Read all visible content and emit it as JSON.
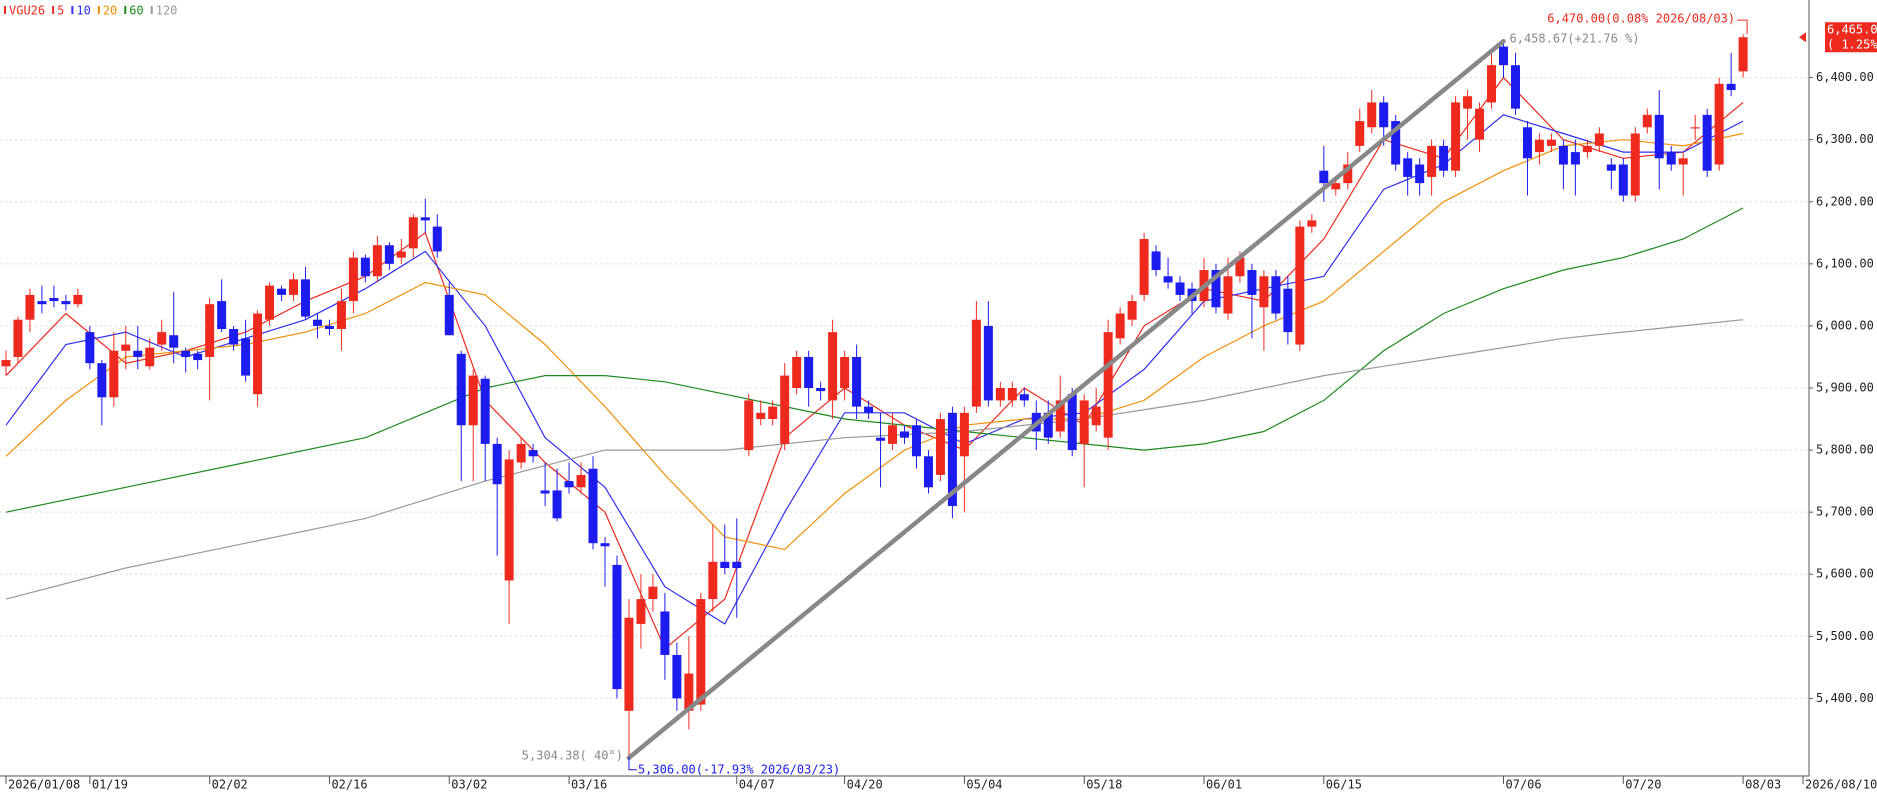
{
  "chart_data": {
    "type": "candlestick",
    "series": [
      {
        "name": "VGU26",
        "up_color": "#ee2a1e",
        "down_color": "#1c1cee",
        "open": [
          5935,
          5950,
          6010,
          6040,
          6045,
          6040,
          6035,
          5990,
          5940,
          5885,
          5960,
          5960,
          5935,
          5970,
          5985,
          5960,
          5955,
          5950,
          6040,
          5995,
          5980,
          5890,
          6010,
          6060,
          6050,
          6075,
          6010,
          6000,
          5995,
          6040,
          6110,
          6080,
          6130,
          6110,
          6125,
          6175,
          6160,
          6050,
          5955,
          5840,
          5915,
          5810,
          5590,
          5780,
          5800,
          5735,
          5735,
          5750,
          5740,
          5770,
          5650,
          5615,
          5380,
          5520,
          5560,
          5540,
          5470,
          5380,
          5390,
          5560,
          5620,
          5620,
          5800,
          5850,
          5850,
          5810,
          5900,
          5950,
          5900,
          5880,
          5900,
          5950,
          5870,
          5820,
          5810,
          5830,
          5840,
          5790,
          5760,
          5860,
          5790,
          5870,
          6000,
          5880,
          5880,
          5890,
          5860,
          5860,
          5830,
          5890,
          5810,
          5840,
          5820,
          5980,
          6010,
          6050,
          6120,
          6080,
          6070,
          6060,
          6040,
          6090,
          6020,
          6080,
          6090,
          6030,
          6080,
          6060,
          5970,
          6160,
          6250,
          6220,
          6230,
          6290,
          6320,
          6360,
          6330,
          6270,
          6260,
          6240,
          6290,
          6250,
          6350,
          6300,
          6360,
          6450,
          6420,
          6320,
          6280,
          6290,
          6290,
          6280,
          6280,
          6290,
          6260,
          6260,
          6210,
          6320,
          6340,
          6280,
          6260,
          6320,
          6340,
          6260,
          6390,
          6410
        ],
        "high": [
          5960,
          6015,
          6060,
          6065,
          6065,
          6050,
          6060,
          6000,
          5945,
          5990,
          6000,
          6000,
          5980,
          6010,
          6055,
          5965,
          5960,
          6045,
          6075,
          6000,
          6010,
          6025,
          6070,
          6065,
          6085,
          6095,
          6020,
          6010,
          6060,
          6120,
          6115,
          6145,
          6135,
          6140,
          6180,
          6205,
          6180,
          6070,
          5960,
          5930,
          5920,
          5820,
          5800,
          5820,
          5810,
          5780,
          5770,
          5780,
          5780,
          5790,
          5660,
          5630,
          5560,
          5600,
          5600,
          5570,
          5490,
          5500,
          5570,
          5680,
          5680,
          5690,
          5890,
          5880,
          5880,
          5940,
          5960,
          5960,
          5910,
          6010,
          5960,
          5970,
          5880,
          5860,
          5860,
          5840,
          5850,
          5800,
          5860,
          5870,
          5870,
          6040,
          6040,
          5910,
          5910,
          5900,
          5880,
          5880,
          5920,
          5900,
          5890,
          5900,
          6010,
          6030,
          6050,
          6150,
          6130,
          6110,
          6080,
          6070,
          6110,
          6100,
          6110,
          6120,
          6100,
          6090,
          6090,
          6080,
          6170,
          6180,
          6290,
          6240,
          6280,
          6350,
          6380,
          6370,
          6340,
          6280,
          6270,
          6300,
          6300,
          6370,
          6380,
          6360,
          6440,
          6459,
          6440,
          6330,
          6310,
          6310,
          6300,
          6300,
          6300,
          6320,
          6270,
          6270,
          6320,
          6350,
          6380,
          6290,
          6280,
          6340,
          6350,
          6400,
          6440,
          6470
        ],
        "low": [
          5920,
          5940,
          5990,
          6020,
          6030,
          6025,
          6030,
          5930,
          5840,
          5870,
          5930,
          5930,
          5930,
          5960,
          5940,
          5925,
          5930,
          5880,
          5990,
          5960,
          5910,
          5870,
          6000,
          6040,
          6040,
          6010,
          5980,
          5985,
          5960,
          6020,
          6070,
          6070,
          6090,
          6100,
          6110,
          6150,
          6110,
          5985,
          5750,
          5750,
          5750,
          5630,
          5520,
          5770,
          5780,
          5710,
          5685,
          5730,
          5730,
          5640,
          5580,
          5400,
          5306,
          5480,
          5540,
          5430,
          5380,
          5350,
          5380,
          5540,
          5600,
          5530,
          5790,
          5840,
          5840,
          5800,
          5890,
          5870,
          5880,
          5850,
          5880,
          5850,
          5850,
          5740,
          5800,
          5810,
          5770,
          5730,
          5750,
          5690,
          5700,
          5860,
          5870,
          5870,
          5870,
          5870,
          5800,
          5810,
          5820,
          5790,
          5740,
          5830,
          5800,
          5970,
          6000,
          6040,
          6080,
          6060,
          6040,
          6020,
          6030,
          6020,
          6010,
          6070,
          5980,
          5960,
          6010,
          5970,
          5960,
          6150,
          6200,
          6210,
          6220,
          6280,
          6310,
          6290,
          6250,
          6210,
          6210,
          6210,
          6240,
          6240,
          6300,
          6280,
          6350,
          6400,
          6340,
          6210,
          6260,
          6280,
          6220,
          6210,
          6270,
          6280,
          6220,
          6200,
          6200,
          6310,
          6220,
          6250,
          6210,
          6300,
          6240,
          6250,
          6370,
          6400
        ],
        "close": [
          5945,
          6010,
          6050,
          6035,
          6040,
          6035,
          6050,
          5940,
          5885,
          5960,
          5970,
          5950,
          5965,
          5990,
          5965,
          5950,
          5945,
          6035,
          5995,
          5970,
          5920,
          6020,
          6065,
          6050,
          6075,
          6015,
          6000,
          5995,
          6040,
          6110,
          6080,
          6130,
          6100,
          6120,
          6175,
          6170,
          6120,
          5985,
          5840,
          5920,
          5810,
          5745,
          5785,
          5810,
          5790,
          5730,
          5690,
          5740,
          5760,
          5650,
          5645,
          5415,
          5530,
          5560,
          5580,
          5470,
          5400,
          5440,
          5560,
          5620,
          5610,
          5610,
          5880,
          5860,
          5870,
          5920,
          5950,
          5900,
          5895,
          5990,
          5950,
          5870,
          5860,
          5815,
          5840,
          5820,
          5790,
          5740,
          5850,
          5710,
          5860,
          6010,
          5880,
          5900,
          5900,
          5880,
          5830,
          5820,
          5880,
          5800,
          5880,
          5870,
          5990,
          6020,
          6040,
          6140,
          6090,
          6070,
          6050,
          6040,
          6090,
          6030,
          6080,
          6110,
          6050,
          6080,
          6020,
          5990,
          6160,
          6170,
          6230,
          6230,
          6260,
          6330,
          6360,
          6320,
          6260,
          6240,
          6230,
          6290,
          6250,
          6360,
          6370,
          6350,
          6420,
          6420,
          6350,
          6270,
          6300,
          6300,
          6260,
          6260,
          6290,
          6310,
          6250,
          6210,
          6310,
          6340,
          6270,
          6260,
          6270,
          6320,
          6250,
          6390,
          6380,
          6465
        ]
      }
    ],
    "moving_averages": [
      {
        "name": "5",
        "color": "#ee2a1e",
        "x": [
          0,
          5,
          10,
          15,
          20,
          25,
          30,
          35,
          40,
          45,
          50,
          55,
          60,
          65,
          70,
          75,
          80,
          85,
          90,
          95,
          100,
          105,
          110,
          115,
          120,
          125,
          130,
          135,
          140,
          145
        ],
        "values": [
          5920,
          6020,
          5940,
          5960,
          5990,
          6040,
          6080,
          6150,
          5880,
          5780,
          5700,
          5480,
          5560,
          5820,
          5900,
          5840,
          5800,
          5900,
          5840,
          6000,
          6060,
          6040,
          6140,
          6300,
          6270,
          6400,
          6300,
          6270,
          6280,
          6360
        ]
      },
      {
        "name": "10",
        "color": "#3030f0",
        "x": [
          0,
          5,
          10,
          15,
          20,
          25,
          30,
          35,
          40,
          45,
          50,
          55,
          60,
          65,
          70,
          75,
          80,
          85,
          90,
          95,
          100,
          105,
          110,
          115,
          120,
          125,
          130,
          135,
          140,
          145
        ],
        "values": [
          5840,
          5970,
          5990,
          5950,
          5980,
          6010,
          6060,
          6120,
          6000,
          5820,
          5740,
          5580,
          5520,
          5700,
          5860,
          5860,
          5810,
          5850,
          5860,
          5930,
          6040,
          6060,
          6080,
          6220,
          6260,
          6340,
          6310,
          6280,
          6280,
          6330
        ]
      },
      {
        "name": "20",
        "color": "#f0900a",
        "x": [
          0,
          5,
          10,
          15,
          20,
          25,
          30,
          35,
          40,
          45,
          50,
          55,
          60,
          65,
          70,
          75,
          80,
          85,
          90,
          95,
          100,
          105,
          110,
          115,
          120,
          125,
          130,
          135,
          140,
          145
        ],
        "values": [
          5790,
          5880,
          5950,
          5960,
          5970,
          5990,
          6020,
          6070,
          6050,
          5970,
          5870,
          5760,
          5660,
          5640,
          5730,
          5800,
          5840,
          5850,
          5850,
          5880,
          5950,
          6000,
          6040,
          6120,
          6200,
          6250,
          6290,
          6300,
          6290,
          6310
        ]
      },
      {
        "name": "60",
        "color": "#1e8a1e",
        "x": [
          0,
          10,
          20,
          30,
          35,
          40,
          45,
          50,
          55,
          60,
          70,
          80,
          90,
          95,
          100,
          105,
          110,
          115,
          120,
          125,
          130,
          135,
          140,
          145
        ],
        "values": [
          5700,
          5740,
          5780,
          5820,
          5860,
          5900,
          5920,
          5920,
          5910,
          5890,
          5850,
          5830,
          5810,
          5800,
          5810,
          5830,
          5880,
          5960,
          6020,
          6060,
          6090,
          6110,
          6140,
          6190
        ]
      },
      {
        "name": "120",
        "color": "#999999",
        "x": [
          0,
          10,
          20,
          30,
          40,
          50,
          60,
          70,
          80,
          90,
          100,
          110,
          120,
          130,
          140,
          145
        ],
        "values": [
          5560,
          5610,
          5650,
          5690,
          5750,
          5800,
          5800,
          5820,
          5830,
          5850,
          5880,
          5920,
          5950,
          5980,
          6000,
          6010
        ]
      }
    ],
    "trend_line": {
      "color": "#888888",
      "start": {
        "index": 52,
        "value": 5304.38,
        "label": "5,304.38( 40°)"
      },
      "end": {
        "index": 125,
        "value": 6458.67,
        "label": "6,458.67(+21.76 %)"
      }
    },
    "annotations": [
      {
        "label": "6,470.00(0.08% 2026/08/03)",
        "index": 145,
        "value": 6470,
        "color": "#ee2a1e"
      },
      {
        "label": "5,306.00(-17.93% 2026/03/23)",
        "index": 52,
        "value": 5306,
        "color": "#1c1cee"
      }
    ],
    "last_price": {
      "value": 6465,
      "label": "6,465.00",
      "change": "( 1.25%)",
      "color": "#ee2a1e"
    },
    "xlim": [
      -0.5,
      150.5
    ],
    "xticks": [
      {
        "value": 0,
        "label": "2026/01/08"
      },
      {
        "value": 7,
        "label": "01/19"
      },
      {
        "value": 17,
        "label": "02/02"
      },
      {
        "value": 27,
        "label": "02/16"
      },
      {
        "value": 37,
        "label": "03/02"
      },
      {
        "value": 47,
        "label": "03/16"
      },
      {
        "value": 61,
        "label": "04/07"
      },
      {
        "value": 70,
        "label": "04/20"
      },
      {
        "value": 80,
        "label": "05/04"
      },
      {
        "value": 90,
        "label": "05/18"
      },
      {
        "value": 100,
        "label": "06/01"
      },
      {
        "value": 110,
        "label": "06/15"
      },
      {
        "value": 125,
        "label": "07/06"
      },
      {
        "value": 135,
        "label": "07/20"
      },
      {
        "value": 145,
        "label": "08/03"
      },
      {
        "value": 150,
        "label": "2026/08/10"
      }
    ],
    "ylim": [
      5275,
      6525
    ],
    "yticks": [
      {
        "value": 5400,
        "label": "5,400.00"
      },
      {
        "value": 5500,
        "label": "5,500.00"
      },
      {
        "value": 5600,
        "label": "5,600.00"
      },
      {
        "value": 5700,
        "label": "5,700.00"
      },
      {
        "value": 5800,
        "label": "5,800.00"
      },
      {
        "value": 5900,
        "label": "5,900.00"
      },
      {
        "value": 6000,
        "label": "6,000.00"
      },
      {
        "value": 6100,
        "label": "6,100.00"
      },
      {
        "value": 6200,
        "label": "6,200.00"
      },
      {
        "value": 6300,
        "label": "6,300.00"
      },
      {
        "value": 6400,
        "label": "6,400.00"
      }
    ],
    "grid": true
  }
}
